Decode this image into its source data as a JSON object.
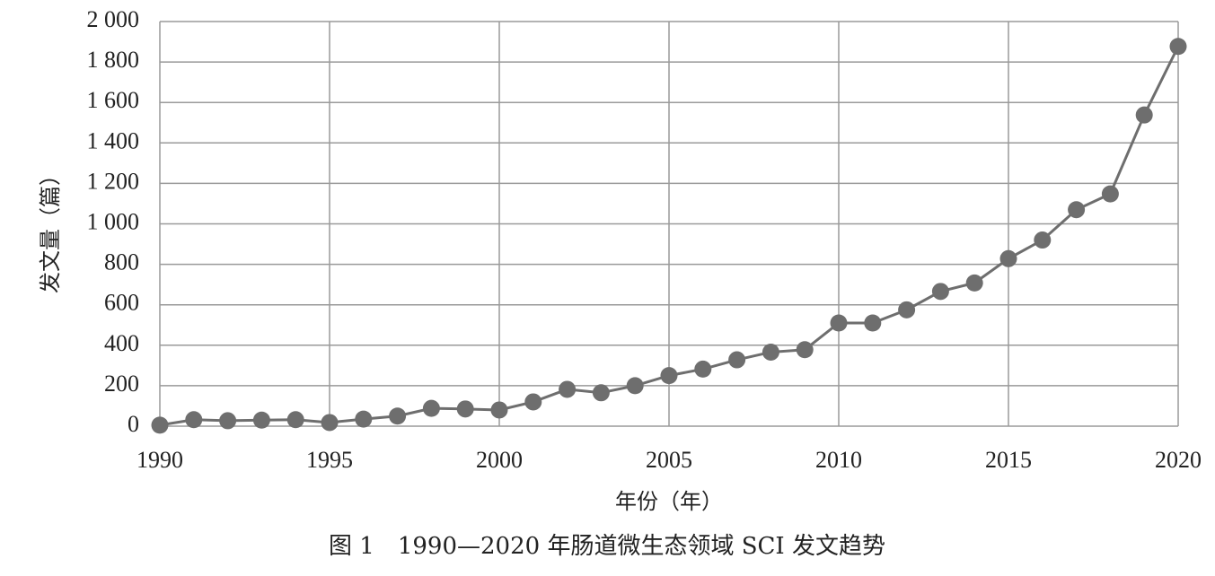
{
  "chart_data": {
    "type": "line",
    "title": "",
    "caption": "图 1　1990—2020 年肠道微生态领域 SCI 发文趋势",
    "xlabel": "年份（年）",
    "ylabel": "发文量（篇）",
    "ylim": [
      0,
      2000
    ],
    "y_ticks": [
      0,
      200,
      400,
      600,
      800,
      1000,
      1200,
      1400,
      1600,
      1800,
      2000
    ],
    "y_tick_labels": [
      "0",
      "200",
      "400",
      "600",
      "800",
      "1 000",
      "1 200",
      "1 400",
      "1 600",
      "1 800",
      "2 000"
    ],
    "xlim": [
      1990,
      2020
    ],
    "x_ticks": [
      1990,
      1995,
      2000,
      2005,
      2010,
      2015,
      2020
    ],
    "x_tick_labels": [
      "1990",
      "1995",
      "2000",
      "2005",
      "2010",
      "2015",
      "2020"
    ],
    "grid": true,
    "series": [
      {
        "name": "发文量",
        "color": "#6e6e6e",
        "x": [
          1990,
          1991,
          1992,
          1993,
          1994,
          1995,
          1996,
          1997,
          1998,
          1999,
          2000,
          2001,
          2002,
          2003,
          2004,
          2005,
          2006,
          2007,
          2008,
          2009,
          2010,
          2011,
          2012,
          2013,
          2014,
          2015,
          2016,
          2017,
          2018,
          2019,
          2020
        ],
        "values": [
          5,
          32,
          27,
          30,
          32,
          18,
          35,
          50,
          88,
          85,
          80,
          120,
          182,
          165,
          200,
          250,
          282,
          328,
          366,
          378,
          510,
          510,
          575,
          666,
          708,
          828,
          920,
          1070,
          1148,
          1538,
          1877
        ]
      }
    ]
  }
}
